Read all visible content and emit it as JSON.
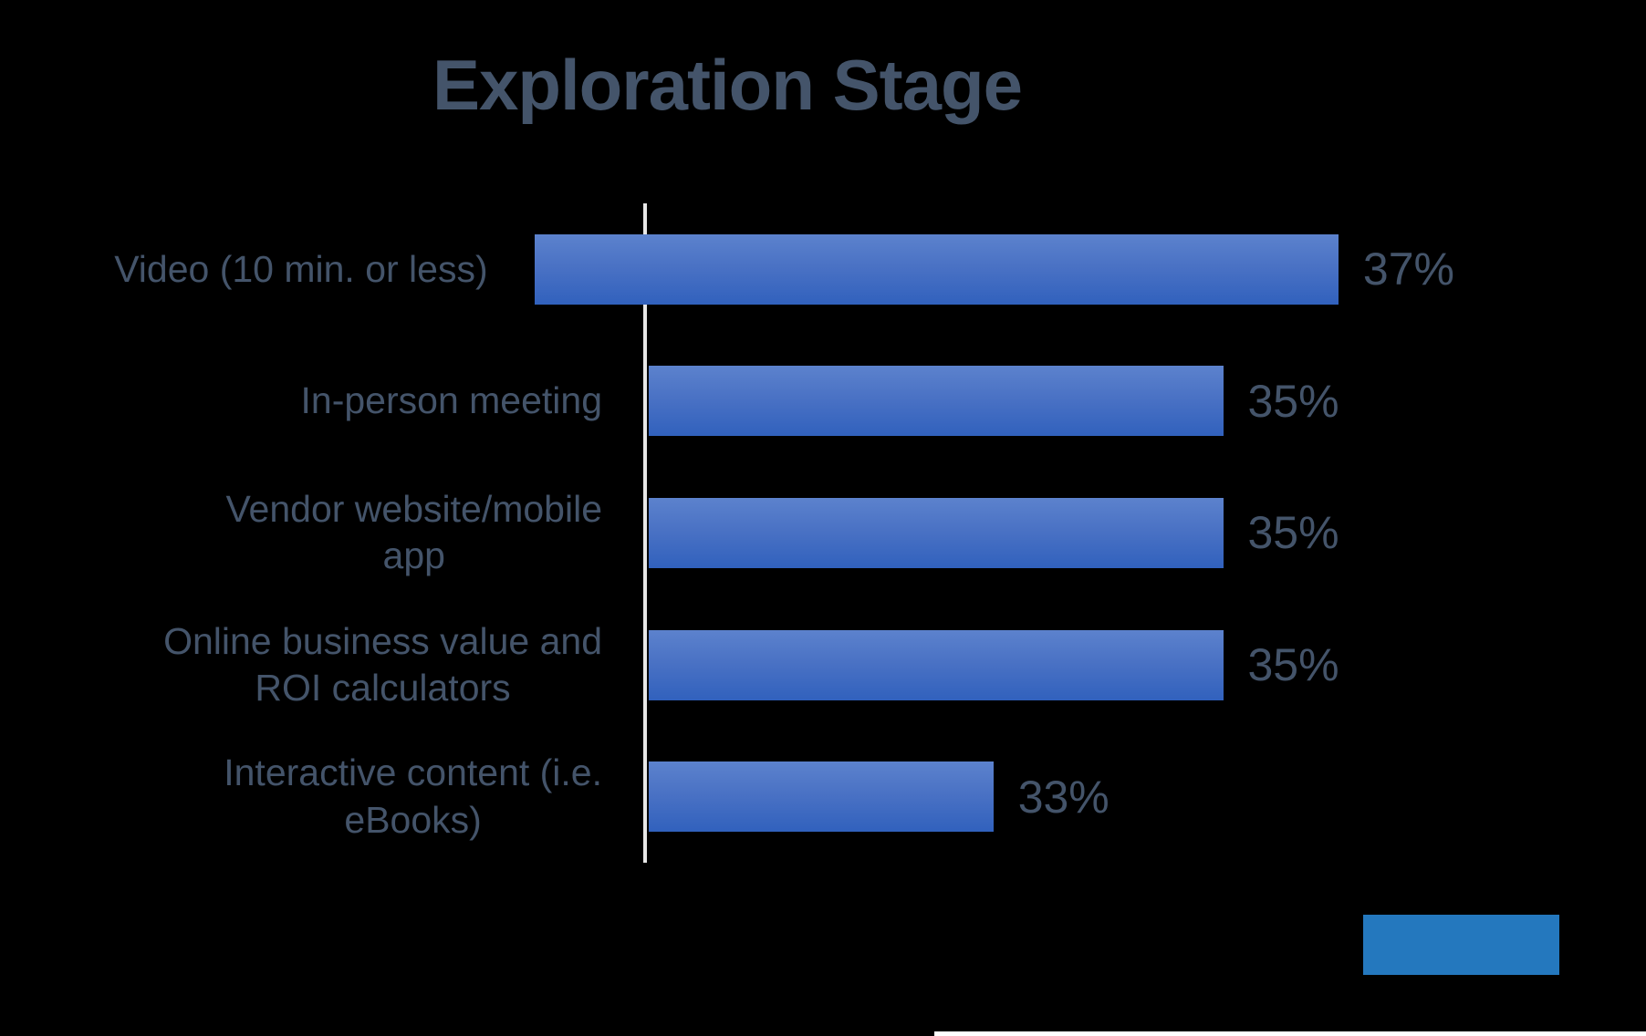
{
  "title": "Exploration Stage",
  "chart_data": {
    "type": "bar",
    "orientation": "horizontal",
    "title": "Exploration Stage",
    "categories": [
      "Video (10 min. or less)",
      "In-person meeting",
      "Vendor website/mobile\napp",
      "Online business value and\nROI calculators",
      "Interactive content (i.e.\neBooks)"
    ],
    "values": [
      37,
      35,
      35,
      35,
      33
    ],
    "value_labels": [
      "37%",
      "35%",
      "35%",
      "35%",
      "33%"
    ],
    "x_axis_min": 30,
    "x_axis_max": 38.5,
    "x_axis_tick_labels_visible": false,
    "grid": false,
    "legend": "none",
    "data_label_position": "outside-end",
    "bar_gradient_top": "#5C82CD",
    "bar_gradient_bottom": "#3161BD"
  },
  "colors": {
    "background": "#000000",
    "text": "#44546A",
    "axis_line": "#E7E7E7",
    "bottom_rectangle": "#2478BE",
    "bottom_edge_strip": "#FFFFFF"
  }
}
